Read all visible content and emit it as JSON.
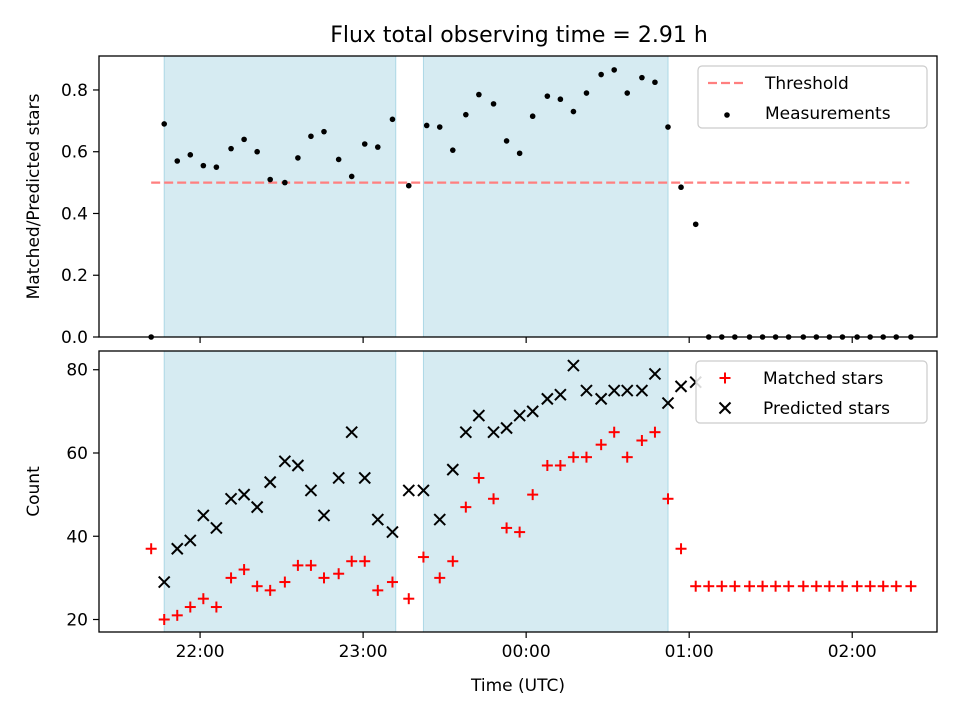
{
  "figure": {
    "title": "Flux total observing time = 2.91 h"
  },
  "colors": {
    "band": "#add8e6",
    "threshold": "#ff7f7f",
    "matched": "#ff0000",
    "predicted": "#000000",
    "measurement": "#000000"
  },
  "chart_data": [
    {
      "type": "scatter",
      "title": "Flux total observing time = 2.91 h",
      "xlabel": "",
      "ylabel": "Matched/Predicted stars",
      "x_unit": "hours after 00:00 UTC",
      "xlim": [
        -2.62,
        2.52
      ],
      "ylim": [
        0.0,
        0.91
      ],
      "y_ticks": [
        0.0,
        0.2,
        0.4,
        0.6,
        0.8
      ],
      "y_tick_labels": [
        "0.0",
        "0.2",
        "0.4",
        "0.6",
        "0.8"
      ],
      "x_ticks": [
        -2.0,
        -1.0,
        0.0,
        1.0,
        2.0
      ],
      "x_tick_labels": [
        "",
        "",
        "",
        "",
        ""
      ],
      "grid": false,
      "legend": "top-right",
      "bands": [
        {
          "x": [
            -2.22,
            -0.8
          ]
        },
        {
          "x": [
            -0.63,
            0.87
          ]
        }
      ],
      "threshold": {
        "name": "Threshold",
        "y": 0.5,
        "x": [
          -2.3,
          2.35
        ]
      },
      "series": [
        {
          "name": "Measurements",
          "x": [
            -2.3,
            -2.22,
            -2.14,
            -2.06,
            -1.98,
            -1.9,
            -1.81,
            -1.73,
            -1.65,
            -1.57,
            -1.48,
            -1.4,
            -1.32,
            -1.24,
            -1.15,
            -1.07,
            -0.99,
            -0.91,
            -0.82,
            -0.72,
            -0.61,
            -0.53,
            -0.45,
            -0.37,
            -0.29,
            -0.2,
            -0.12,
            -0.04,
            0.04,
            0.13,
            0.21,
            0.29,
            0.37,
            0.46,
            0.54,
            0.62,
            0.71,
            0.79,
            0.87,
            0.95,
            1.04,
            1.12,
            1.2,
            1.28,
            1.37,
            1.45,
            1.53,
            1.61,
            1.7,
            1.78,
            1.86,
            1.94,
            2.03,
            2.11,
            2.19,
            2.27,
            2.36
          ],
          "y": [
            0.0,
            0.69,
            0.57,
            0.59,
            0.555,
            0.55,
            0.61,
            0.64,
            0.6,
            0.51,
            0.5,
            0.58,
            0.65,
            0.665,
            0.575,
            0.52,
            0.625,
            0.615,
            0.705,
            0.49,
            0.685,
            0.68,
            0.605,
            0.72,
            0.785,
            0.755,
            0.635,
            0.595,
            0.715,
            0.78,
            0.77,
            0.73,
            0.79,
            0.85,
            0.865,
            0.79,
            0.84,
            0.825,
            0.68,
            0.485,
            0.365,
            0.0,
            0.0,
            0.0,
            0.0,
            0.0,
            0.0,
            0.0,
            0.0,
            0.0,
            0.0,
            0.0,
            0.0,
            0.0,
            0.0,
            0.0,
            0.0
          ]
        }
      ]
    },
    {
      "type": "scatter",
      "title": "",
      "xlabel": "Time (UTC)",
      "ylabel": "Count",
      "x_unit": "hours after 00:00 UTC",
      "xlim": [
        -2.62,
        2.52
      ],
      "ylim": [
        17,
        84.5
      ],
      "y_ticks": [
        20,
        40,
        60,
        80
      ],
      "y_tick_labels": [
        "20",
        "40",
        "60",
        "80"
      ],
      "x_ticks": [
        -2.0,
        -1.0,
        0.0,
        1.0,
        2.0
      ],
      "x_tick_labels": [
        "22:00",
        "23:00",
        "00:00",
        "01:00",
        "02:00"
      ],
      "grid": false,
      "legend": "top-right",
      "bands": [
        {
          "x": [
            -2.22,
            -0.8
          ]
        },
        {
          "x": [
            -0.63,
            0.87
          ]
        }
      ],
      "series": [
        {
          "name": "Matched stars",
          "marker": "plus",
          "x": [
            -2.3,
            -2.22,
            -2.14,
            -2.06,
            -1.98,
            -1.9,
            -1.81,
            -1.73,
            -1.65,
            -1.57,
            -1.48,
            -1.4,
            -1.32,
            -1.24,
            -1.15,
            -1.07,
            -0.99,
            -0.91,
            -0.82,
            -0.72,
            -0.63,
            -0.53,
            -0.45,
            -0.37,
            -0.29,
            -0.2,
            -0.12,
            -0.04,
            0.04,
            0.13,
            0.21,
            0.29,
            0.37,
            0.46,
            0.54,
            0.62,
            0.71,
            0.79,
            0.87,
            0.95,
            1.04,
            1.12,
            1.2,
            1.28,
            1.37,
            1.45,
            1.53,
            1.61,
            1.7,
            1.78,
            1.86,
            1.94,
            2.03,
            2.11,
            2.19,
            2.27,
            2.36
          ],
          "y": [
            37,
            20,
            21,
            23,
            25,
            23,
            30,
            32,
            28,
            27,
            29,
            33,
            33,
            30,
            31,
            34,
            34,
            27,
            29,
            25,
            35,
            30,
            34,
            47,
            54,
            49,
            42,
            41,
            50,
            57,
            57,
            59,
            59,
            62,
            65,
            59,
            63,
            65,
            49,
            37,
            28,
            28,
            28,
            28,
            28,
            28,
            28,
            28,
            28,
            28,
            28,
            28,
            28,
            28,
            28,
            28,
            28
          ]
        },
        {
          "name": "Predicted stars",
          "marker": "x",
          "x": [
            -2.22,
            -2.14,
            -2.06,
            -1.98,
            -1.9,
            -1.81,
            -1.73,
            -1.65,
            -1.57,
            -1.48,
            -1.4,
            -1.32,
            -1.24,
            -1.15,
            -1.07,
            -0.99,
            -0.91,
            -0.82,
            -0.72,
            -0.63,
            -0.53,
            -0.45,
            -0.37,
            -0.29,
            -0.2,
            -0.12,
            -0.04,
            0.04,
            0.13,
            0.21,
            0.29,
            0.37,
            0.46,
            0.54,
            0.62,
            0.71,
            0.79,
            0.87,
            0.95,
            1.04
          ],
          "y": [
            29,
            37,
            39,
            45,
            42,
            49,
            50,
            47,
            53,
            58,
            57,
            51,
            45,
            54,
            65,
            54,
            44,
            41,
            51,
            51,
            44,
            56,
            65,
            69,
            65,
            66,
            69,
            70,
            73,
            74,
            81,
            75,
            73,
            75,
            75,
            75,
            79,
            72,
            76,
            77
          ]
        }
      ]
    }
  ]
}
